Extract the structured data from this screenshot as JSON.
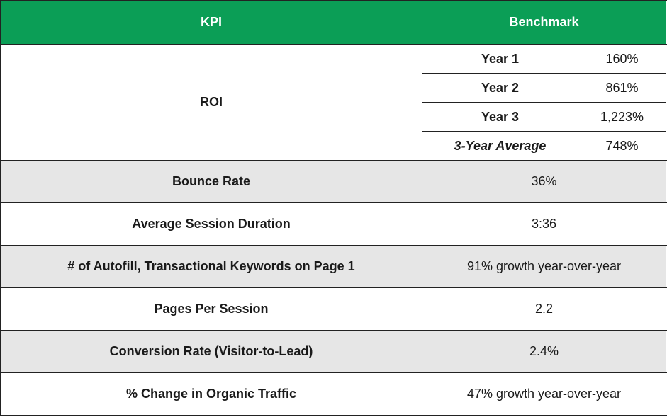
{
  "header": {
    "kpi": "KPI",
    "benchmark": "Benchmark"
  },
  "roi": {
    "label": "ROI",
    "years": [
      {
        "label": "Year 1",
        "value": "160%"
      },
      {
        "label": "Year 2",
        "value": "861%"
      },
      {
        "label": "Year 3",
        "value": "1,223%"
      },
      {
        "label": "3-Year Average",
        "value": "748%"
      }
    ]
  },
  "rows": [
    {
      "kpi": "Bounce Rate",
      "benchmark": "36%"
    },
    {
      "kpi": "Average Session Duration",
      "benchmark": "3:36"
    },
    {
      "kpi": "# of Autofill, Transactional Keywords on Page 1",
      "benchmark": "91% growth year-over-year"
    },
    {
      "kpi": "Pages Per Session",
      "benchmark": "2.2"
    },
    {
      "kpi": "Conversion Rate (Visitor-to-Lead)",
      "benchmark": "2.4%"
    },
    {
      "kpi": "% Change in Organic Traffic",
      "benchmark": "47% growth year-over-year"
    }
  ],
  "colors": {
    "header_bg": "#0b9e56",
    "alt_row_bg": "#e6e6e6",
    "border": "#222222"
  }
}
